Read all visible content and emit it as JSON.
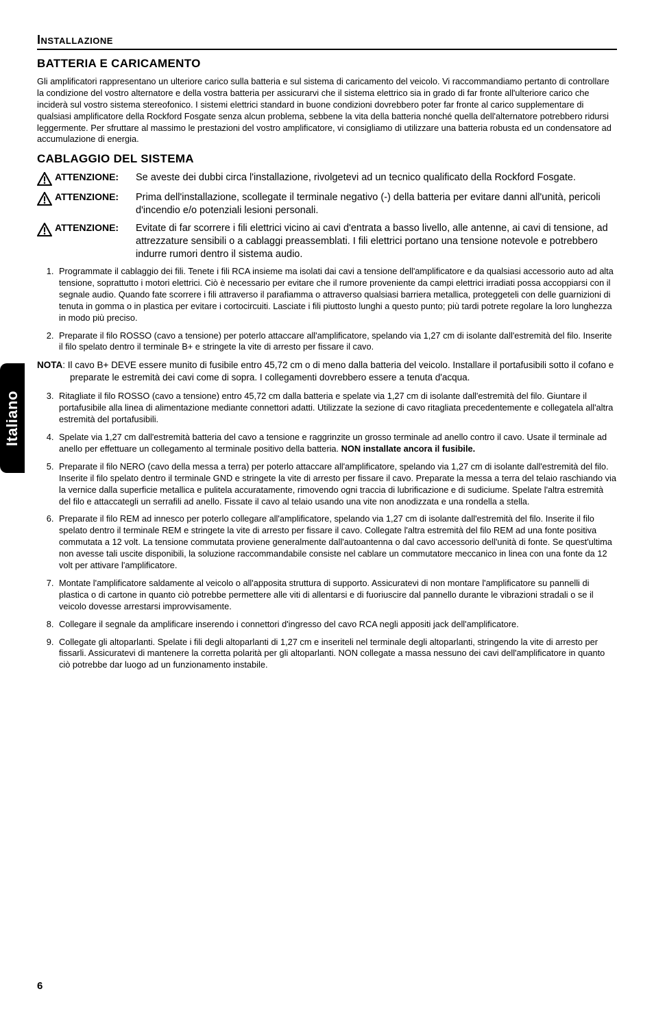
{
  "sideTab": "Italiano",
  "pageNumber": "6",
  "sectionHead": "Installazione",
  "subHead1": "BATTERIA E CARICAMENTO",
  "intro": "Gli amplificatori rappresentano un ulteriore carico sulla batteria e sul sistema di caricamento del veicolo. Vi raccommandiamo pertanto di controllare la condizione del vostro alternatore e della vostra batteria per assicurarvi che il sistema elettrico sia in grado di far fronte all'ulteriore carico che inciderà sul vostro sistema stereofonico. I sistemi elettrici standard in buone condizioni dovrebbero poter far fronte al carico supplementare di qualsiasi amplificatore della Rockford Fosgate senza alcun problema, sebbene la vita della batteria nonché quella dell'alternatore potrebbero ridursi leggermente. Per sfruttare al massimo le prestazioni del vostro amplificatore, vi consigliamo di utilizzare una batteria robusta ed un condensatore ad accumulazione di energia.",
  "subHead2": "CABLAGGIO DEL SISTEMA",
  "warnings": [
    {
      "label": "ATTENZIONE:",
      "text": "Se aveste dei dubbi circa l'installazione, rivolgetevi ad un tecnico qualificato della Rockford Fosgate."
    },
    {
      "label": "ATTENZIONE:",
      "text": "Prima dell'installazione, scollegate il terminale  negativo (-) della batteria per evitare danni all'unità, pericoli d'incendio e/o potenziali lesioni personali."
    },
    {
      "label": "ATTENZIONE:",
      "text": "Evitate di far scorrere i fili elettrici vicino ai cavi d'entrata a basso livello, alle antenne, ai cavi di tensione, ad attrezzature sensibili o a cablaggi preassemblati. I fili elettrici portano una tensione notevole e potrebbero indurre rumori dentro il sistema audio."
    }
  ],
  "steps12": [
    "Programmate il cablaggio dei fili. Tenete i fili RCA insieme ma isolati dai cavi a tensione dell'amplificatore e da qualsiasi accessorio auto ad alta tensione, soprattutto i motori elettrici. Ciò è necessario per evitare che il rumore proveniente da campi elettrici irradiati possa accoppiarsi con il segnale audio. Quando fate scorrere i fili attraverso il parafiamma o attraverso qualsiasi barriera metallica, proteggeteli con delle guarnizioni di tenuta in gomma o in plastica per evitare i cortocircuiti. Lasciate i fili piuttosto lunghi a questo punto; più tardi potrete regolare la loro lunghezza in modo più preciso.",
    "Preparate il filo ROSSO (cavo a tensione) per poterlo attaccare all'amplificatore, spelando via 1,27 cm di isolante dall'estremità del filo. Inserite il filo spelato dentro il terminale B+ e stringete la vite di arresto per fissare il cavo."
  ],
  "notaLabel": "NOTA",
  "notaText": ": Il cavo B+ DEVE essere munito di fusibile entro 45,72 cm o  di meno dalla batteria del veicolo. Installare il portafusibili sotto il cofano e preparate le estremità dei cavi come di sopra. I collegamenti dovrebbero essere a tenuta d'acqua.",
  "steps39": [
    "Ritagliate il filo ROSSO (cavo a tensione) entro 45,72 cm dalla batteria e spelate via 1,27 cm di isolante dall'estremità del filo. Giuntare il portafusibile alla linea di alimentazione mediante connettori adatti. Utilizzate la sezione di cavo ritagliata precedentemente e collegatela all'altra estremità del portafusibili.",
    "Spelate via 1,27 cm dall'estremità batteria del cavo a tensione e raggrinzite un grosso terminale ad anello contro il cavo. Usate il terminale ad anello per effettuare un collegamento al terminale positivo della batteria. <b>NON installate ancora il fusibile.</b>",
    "Preparate il filo NERO (cavo della messa a terra) per poterlo  attaccare all'amplificatore, spelando via 1,27 cm di isolante dall'estremità del filo. Inserite il filo spelato dentro il terminale GND e stringete la vite di arresto per fissare il cavo. Preparate la messa a terra del telaio raschiando via la vernice dalla superficie metallica e pulitela accuratamente, rimovendo ogni traccia di lubrificazione e di sudiciume. Spelate l'altra estremità del filo e attaccategli un serrafili ad anello. Fissate il cavo al telaio usando una vite non anodizzata e una rondella a stella.",
    "Preparate il filo REM ad innesco per poterlo collegare  all'amplificatore, spelando via 1,27 cm di isolante dall'estremità del filo. Inserite il filo spelato dentro il terminale REM e stringete la vite di arresto per fissare il cavo. Collegate l'altra estremità del filo REM ad una fonte positiva commutata a 12 volt. La tensione commutata proviene generalmente dall'autoantenna o dal cavo accessorio dell'unità di fonte. Se quest'ultima non avesse tali uscite disponibili, la soluzione raccommandabile consiste nel cablare un commutatore  meccanico in linea con una fonte da 12 volt per attivare l'amplificatore.",
    "Montate l'amplificatore saldamente al veicolo o all'apposita struttura di supporto. Assicuratevi di non montare l'amplificatore su pannelli di plastica o di cartone in quanto ciò potrebbe permettere alle viti di allentarsi e di fuoriuscire dal pannello durante le vibrazioni stradali o se il veicolo dovesse arrestarsi improvvisamente.",
    "Collegare il segnale da amplificare inserendo i connettori d'ingresso del cavo RCA negli appositi jack dell'amplificatore.",
    "Collegate gli altoparlanti. Spelate i fili degli altoparlanti di 1,27 cm e inseriteli nel terminale degli altoparlanti, stringendo la vite di arresto per fissarli. Assicuratevi di mantenere la corretta polarità per gli altoparlanti. NON collegate a massa nessuno  dei cavi dell'amplificatore in quanto ciò potrebbe dar luogo ad un funzionamento instabile."
  ]
}
